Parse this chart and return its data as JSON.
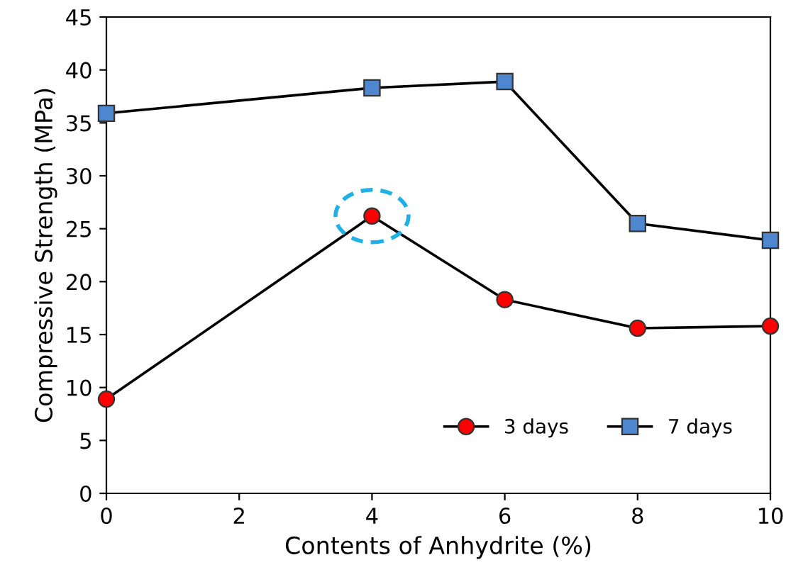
{
  "chart_data": {
    "type": "line",
    "xlabel": "Contents of Anhydrite (%)",
    "ylabel": "Compressive Strength (MPa)",
    "x": [
      0,
      4,
      6,
      8,
      10
    ],
    "series": [
      {
        "name": "3 days",
        "color": "#ff0000",
        "marker": "circle",
        "values": [
          8.9,
          26.2,
          18.3,
          15.6,
          15.8
        ]
      },
      {
        "name": "7 days",
        "color": "#4f86d0",
        "marker": "square",
        "values": [
          35.9,
          38.3,
          38.9,
          25.5,
          23.9
        ]
      }
    ],
    "xlim": [
      0,
      10
    ],
    "xticks": [
      0,
      2,
      4,
      6,
      8,
      10
    ],
    "ylim": [
      0,
      45
    ],
    "yticks": [
      0,
      5,
      10,
      15,
      20,
      25,
      30,
      35,
      40,
      45
    ],
    "grid": false,
    "legend": "bottom right",
    "line_style": "solid"
  }
}
